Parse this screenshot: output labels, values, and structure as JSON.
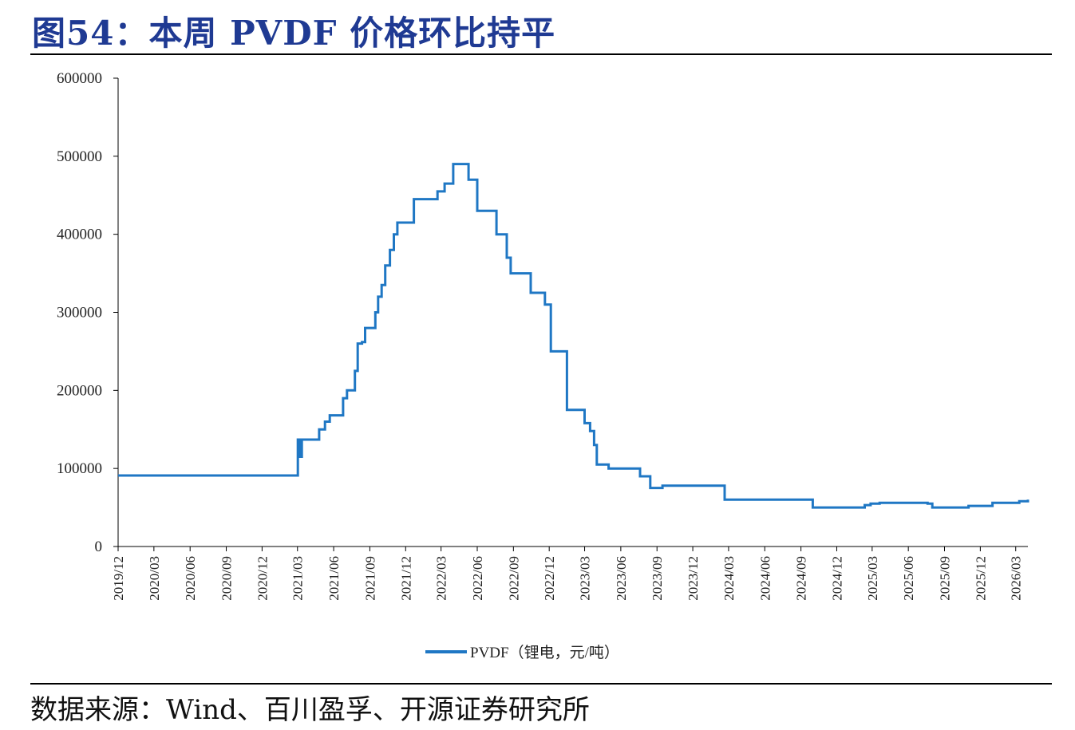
{
  "title": "图54：本周 PVDF 价格环比持平",
  "source": "数据来源：Wind、百川盈孚、开源证券研究所",
  "colors": {
    "title": "#1f3a93",
    "series": "#1f77c4",
    "axis": "#000000"
  },
  "chart_data": {
    "type": "line",
    "title": "",
    "xlabel": "",
    "ylabel": "",
    "ylim": [
      0,
      600000
    ],
    "yticks": [
      "0",
      "100000",
      "200000",
      "300000",
      "400000",
      "500000",
      "600000"
    ],
    "xlim": [
      "2019-12",
      "2026-04"
    ],
    "xticks": [
      "2019/12",
      "2020/03",
      "2020/06",
      "2020/09",
      "2020/12",
      "2021/03",
      "2021/06",
      "2021/09",
      "2021/12",
      "2022/03",
      "2022/06",
      "2022/09",
      "2022/12",
      "2023/03",
      "2023/06",
      "2023/09",
      "2023/12",
      "2024/03",
      "2024/06",
      "2024/09",
      "2024/12",
      "2025/03",
      "2025/06",
      "2025/09",
      "2025/12",
      "2026/03"
    ],
    "legend": "bottom-center",
    "grid": false,
    "series": [
      {
        "name": "PVDF（锂电，元/吨）",
        "step": true,
        "points": [
          [
            "2019-12-01",
            91000
          ],
          [
            "2021-03-01",
            91000
          ],
          [
            "2021-03-02",
            137000
          ],
          [
            "2021-03-06",
            115000
          ],
          [
            "2021-03-12",
            137000
          ],
          [
            "2021-04-10",
            137000
          ],
          [
            "2021-04-25",
            150000
          ],
          [
            "2021-05-10",
            160000
          ],
          [
            "2021-05-22",
            168000
          ],
          [
            "2021-06-25",
            190000
          ],
          [
            "2021-07-05",
            200000
          ],
          [
            "2021-07-25",
            225000
          ],
          [
            "2021-08-01",
            260000
          ],
          [
            "2021-08-12",
            262000
          ],
          [
            "2021-08-20",
            280000
          ],
          [
            "2021-09-15",
            300000
          ],
          [
            "2021-09-22",
            320000
          ],
          [
            "2021-10-01",
            335000
          ],
          [
            "2021-10-10",
            360000
          ],
          [
            "2021-10-22",
            380000
          ],
          [
            "2021-11-01",
            400000
          ],
          [
            "2021-11-10",
            415000
          ],
          [
            "2021-12-22",
            445000
          ],
          [
            "2022-02-20",
            455000
          ],
          [
            "2022-03-10",
            465000
          ],
          [
            "2022-04-01",
            490000
          ],
          [
            "2022-05-10",
            470000
          ],
          [
            "2022-06-01",
            430000
          ],
          [
            "2022-07-20",
            400000
          ],
          [
            "2022-08-15",
            370000
          ],
          [
            "2022-08-25",
            350000
          ],
          [
            "2022-10-15",
            325000
          ],
          [
            "2022-11-20",
            310000
          ],
          [
            "2022-12-05",
            250000
          ],
          [
            "2023-01-15",
            175000
          ],
          [
            "2023-03-01",
            158000
          ],
          [
            "2023-03-15",
            148000
          ],
          [
            "2023-03-25",
            130000
          ],
          [
            "2023-04-01",
            105000
          ],
          [
            "2023-05-01",
            100000
          ],
          [
            "2023-07-20",
            90000
          ],
          [
            "2023-08-15",
            75000
          ],
          [
            "2023-09-15",
            78000
          ],
          [
            "2024-02-20",
            60000
          ],
          [
            "2024-10-01",
            50000
          ],
          [
            "2025-02-10",
            53000
          ],
          [
            "2025-02-25",
            55000
          ],
          [
            "2025-03-20",
            56000
          ],
          [
            "2025-07-20",
            55000
          ],
          [
            "2025-08-01",
            50000
          ],
          [
            "2025-11-01",
            52000
          ],
          [
            "2026-01-01",
            56000
          ],
          [
            "2026-03-10",
            58000
          ],
          [
            "2026-04-01",
            60000
          ]
        ]
      }
    ]
  }
}
